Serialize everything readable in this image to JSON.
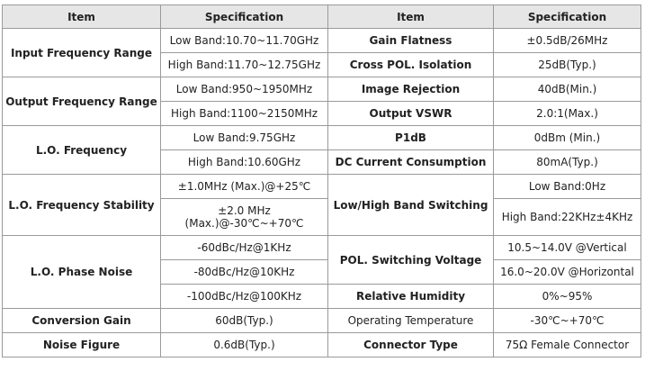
{
  "headers": {
    "item": "Item",
    "specification": "Specification"
  },
  "left": {
    "input_frequency_range": {
      "label": "Input Frequency Range",
      "low": "Low Band:10.70~11.70GHz",
      "high": "High Band:11.70~12.75GHz"
    },
    "output_frequency_range": {
      "label": "Output Frequency Range",
      "low": "Low Band:950~1950MHz",
      "high": "High Band:1100~2150MHz"
    },
    "lo_frequency": {
      "label": "L.O. Frequency",
      "low": "Low Band:9.75GHz",
      "high": "High Band:10.60GHz"
    },
    "lo_frequency_stability": {
      "label": "L.O. Frequency Stability",
      "v1": "±1.0MHz (Max.)@+25℃",
      "v2": "±2.0 MHz (Max.)@-30℃~+70℃"
    },
    "lo_phase_noise": {
      "label": "L.O. Phase Noise",
      "v1": "-60dBc/Hz@1KHz",
      "v2": "-80dBc/Hz@10KHz",
      "v3": "-100dBc/Hz@100KHz"
    },
    "conversion_gain": {
      "label": "Conversion Gain",
      "value": "60dB(Typ.)"
    },
    "noise_figure": {
      "label": "Noise Figure",
      "value": "0.6dB(Typ.)"
    }
  },
  "right": {
    "gain_flatness": {
      "label": "Gain Flatness",
      "value": "±0.5dB/26MHz"
    },
    "cross_pol_isolation": {
      "label": "Cross POL. Isolation",
      "value": "25dB(Typ.)"
    },
    "image_rejection": {
      "label": "Image Rejection",
      "value": "40dB(Min.)"
    },
    "output_vswr": {
      "label": "Output VSWR",
      "value": "2.0:1(Max.)"
    },
    "p1db": {
      "label": "P1dB",
      "value": "0dBm (Min.)"
    },
    "dc_current_consumption": {
      "label": "DC Current Consumption",
      "value": "80mA(Typ.)"
    },
    "band_switching": {
      "label": "Low/High Band Switching",
      "low": "Low Band:0Hz",
      "high": "High Band:22KHz±4KHz"
    },
    "pol_switching_voltage": {
      "label": "POL. Switching Voltage",
      "vertical": "10.5~14.0V @Vertical",
      "horizontal": "16.0~20.0V @Horizontal"
    },
    "relative_humidity": {
      "label": "Relative Humidity",
      "value": "0%~95%"
    },
    "operating_temperature": {
      "label": "Operating Temperature",
      "value": "-30℃~+70℃"
    },
    "connector_type": {
      "label": "Connector Type",
      "value": "75Ω Female Connector"
    }
  }
}
